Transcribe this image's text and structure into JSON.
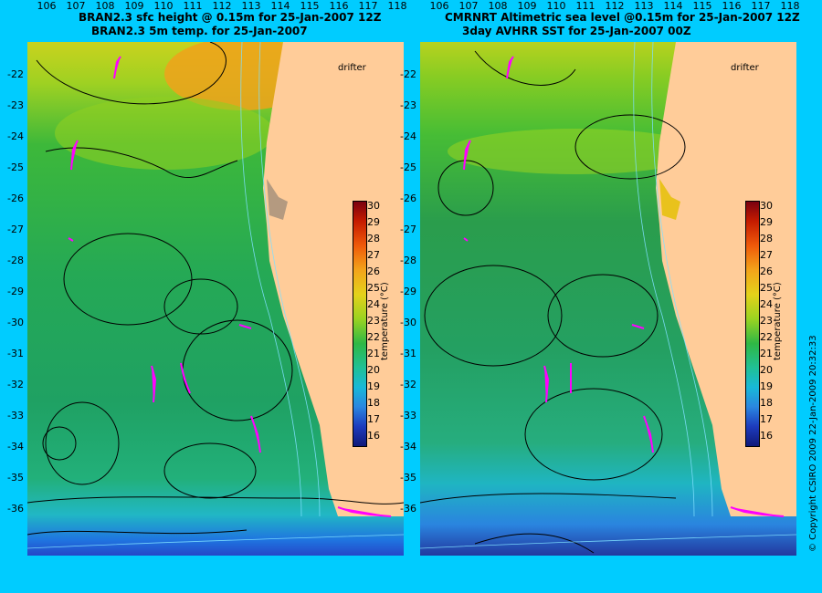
{
  "left": {
    "title_line1": "BRAN2.3 sfc height @ 0.15m for 25-Jan-2007 12Z",
    "title_line2": "BRAN2.3 5m temp. for 25-Jan-2007"
  },
  "right": {
    "title_line1": "CMRNRT Altimetric sea level  @0.15m  for 25-Jan-2007 12Z",
    "title_line2": "3day AVHRR SST for 25-Jan-2007 00Z"
  },
  "legend": {
    "drifter": "drifter"
  },
  "y_ticks": [
    "-22",
    "-23",
    "-24",
    "-25",
    "-26",
    "-27",
    "-28",
    "-29",
    "-30",
    "-31",
    "-32",
    "-33",
    "-34",
    "-35",
    "-36"
  ],
  "x_ticks": [
    "106",
    "107",
    "108",
    "109",
    "110",
    "111",
    "112",
    "113",
    "114",
    "115",
    "116",
    "117",
    "118"
  ],
  "colorbar": {
    "title": "temperature (°C)",
    "ticks": [
      "30",
      "29",
      "28",
      "27",
      "26",
      "25",
      "24",
      "23",
      "22",
      "21",
      "20",
      "19",
      "18",
      "17",
      "16"
    ]
  },
  "copyright": "© Copyright CSIRO 2009   22-Jan-2009 20:32:33",
  "colors": {
    "background": "#00ccff",
    "land": "#ffcc99",
    "drifter_arrow": "#ff00ff"
  }
}
